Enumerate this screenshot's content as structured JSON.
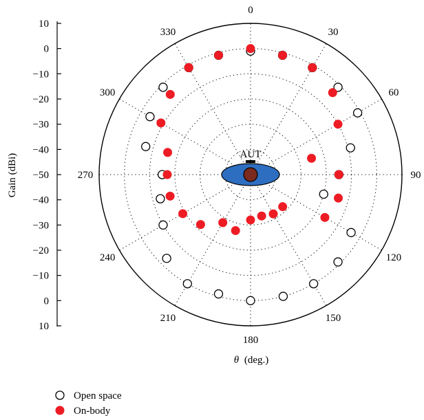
{
  "chart_data": {
    "type": "scatter",
    "subtype": "polar",
    "angular_ticks": [
      "0",
      "30",
      "60",
      "90",
      "120",
      "150",
      "180",
      "210",
      "240",
      "270",
      "300",
      "330"
    ],
    "angle_axis_label": "(deg.)",
    "angle_axis_symbol": "θ",
    "radial_axis_label": "Gain (dBi)",
    "radial_ticks_top": [
      "10",
      "0",
      "−10",
      "−20",
      "−30",
      "−40",
      "−50"
    ],
    "radial_ticks_bottom": [
      "−40",
      "−30",
      "−20",
      "−10",
      "0",
      "10"
    ],
    "radial_range": [
      -50,
      10
    ],
    "radial_grid_step": 10,
    "grid": "dotted",
    "annotation": "AUT",
    "legend_position": "bottom-left",
    "series": [
      {
        "name": "Open space",
        "marker": "open-circle",
        "color": "#000000",
        "points": [
          {
            "theta": 0,
            "gain": -1
          },
          {
            "theta": 15,
            "gain": -1
          },
          {
            "theta": 30,
            "gain": -1
          },
          {
            "theta": 45,
            "gain": -1
          },
          {
            "theta": 60,
            "gain": -1
          },
          {
            "theta": 75,
            "gain": -9
          },
          {
            "theta": 90,
            "gain": -15
          },
          {
            "theta": 105,
            "gain": -20
          },
          {
            "theta": 120,
            "gain": -4
          },
          {
            "theta": 135,
            "gain": -1
          },
          {
            "theta": 150,
            "gain": 0
          },
          {
            "theta": 165,
            "gain": 0
          },
          {
            "theta": 180,
            "gain": 0
          },
          {
            "theta": 195,
            "gain": -1
          },
          {
            "theta": 210,
            "gain": 0
          },
          {
            "theta": 225,
            "gain": -3
          },
          {
            "theta": 240,
            "gain": -10
          },
          {
            "theta": 255,
            "gain": -13
          },
          {
            "theta": 270,
            "gain": -15
          },
          {
            "theta": 285,
            "gain": -7
          },
          {
            "theta": 300,
            "gain": -4
          },
          {
            "theta": 315,
            "gain": -1
          },
          {
            "theta": 330,
            "gain": -1
          },
          {
            "theta": 345,
            "gain": -1
          }
        ]
      },
      {
        "name": "On-body",
        "marker": "filled-circle",
        "color": "#ed1c24",
        "points": [
          {
            "theta": 0,
            "gain": 0
          },
          {
            "theta": 15,
            "gain": -1
          },
          {
            "theta": 30,
            "gain": -1
          },
          {
            "theta": 45,
            "gain": -4
          },
          {
            "theta": 60,
            "gain": -10
          },
          {
            "theta": 75,
            "gain": -25
          },
          {
            "theta": 90,
            "gain": -15
          },
          {
            "theta": 105,
            "gain": -14
          },
          {
            "theta": 120,
            "gain": -16
          },
          {
            "theta": 135,
            "gain": -32
          },
          {
            "theta": 150,
            "gain": -32
          },
          {
            "theta": 165,
            "gain": -33
          },
          {
            "theta": 180,
            "gain": -32
          },
          {
            "theta": 195,
            "gain": -27
          },
          {
            "theta": 210,
            "gain": -28
          },
          {
            "theta": 225,
            "gain": -22
          },
          {
            "theta": 240,
            "gain": -19
          },
          {
            "theta": 255,
            "gain": -17
          },
          {
            "theta": 270,
            "gain": -17
          },
          {
            "theta": 285,
            "gain": -16
          },
          {
            "theta": 300,
            "gain": -9
          },
          {
            "theta": 315,
            "gain": -5
          },
          {
            "theta": 330,
            "gain": -1
          },
          {
            "theta": 345,
            "gain": -1
          }
        ]
      }
    ]
  }
}
